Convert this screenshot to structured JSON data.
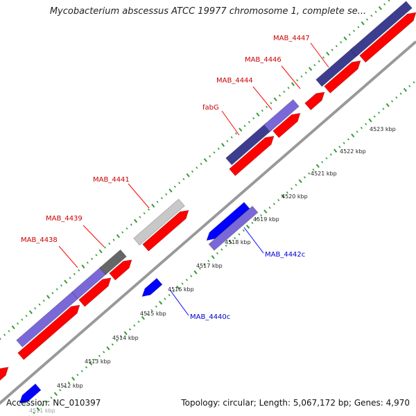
{
  "title": "Mycobacterium abscessus ATCC 19977 chromosome 1, complete se...",
  "accession": "Accession: NC_010397",
  "topology": "Topology: circular; Length: 5,067,172 bp; Genes: 4,970",
  "colors": {
    "forward_cds": "#ff0000",
    "reverse_cds": "#0000ff",
    "forward_label": "#cc0000",
    "reverse_label": "#0000cc",
    "backbone": "#888888",
    "tick": "#339933",
    "gene_purple": "#7b68d8",
    "gene_navy": "#3d3d8f",
    "gene_gray": "#c8c8c8",
    "gene_darkgray": "#666666"
  },
  "kbp_ticks": [
    "4511 kbp",
    "4512 kbp",
    "4513 kbp",
    "4514 kbp",
    "4515 kbp",
    "4516 kbp",
    "4517 kbp",
    "4518 kbp",
    "4519 kbp",
    "4520 kbp",
    "4521 kbp",
    "4522 kbp",
    "4523 kbp"
  ],
  "forward_labels": [
    "MAB_4438",
    "MAB_4439",
    "MAB_4441",
    "fabG",
    "MAB_4444",
    "MAB_4446",
    "MAB_4447"
  ],
  "reverse_labels": [
    "MAB_4440c",
    "MAB_4442c"
  ]
}
